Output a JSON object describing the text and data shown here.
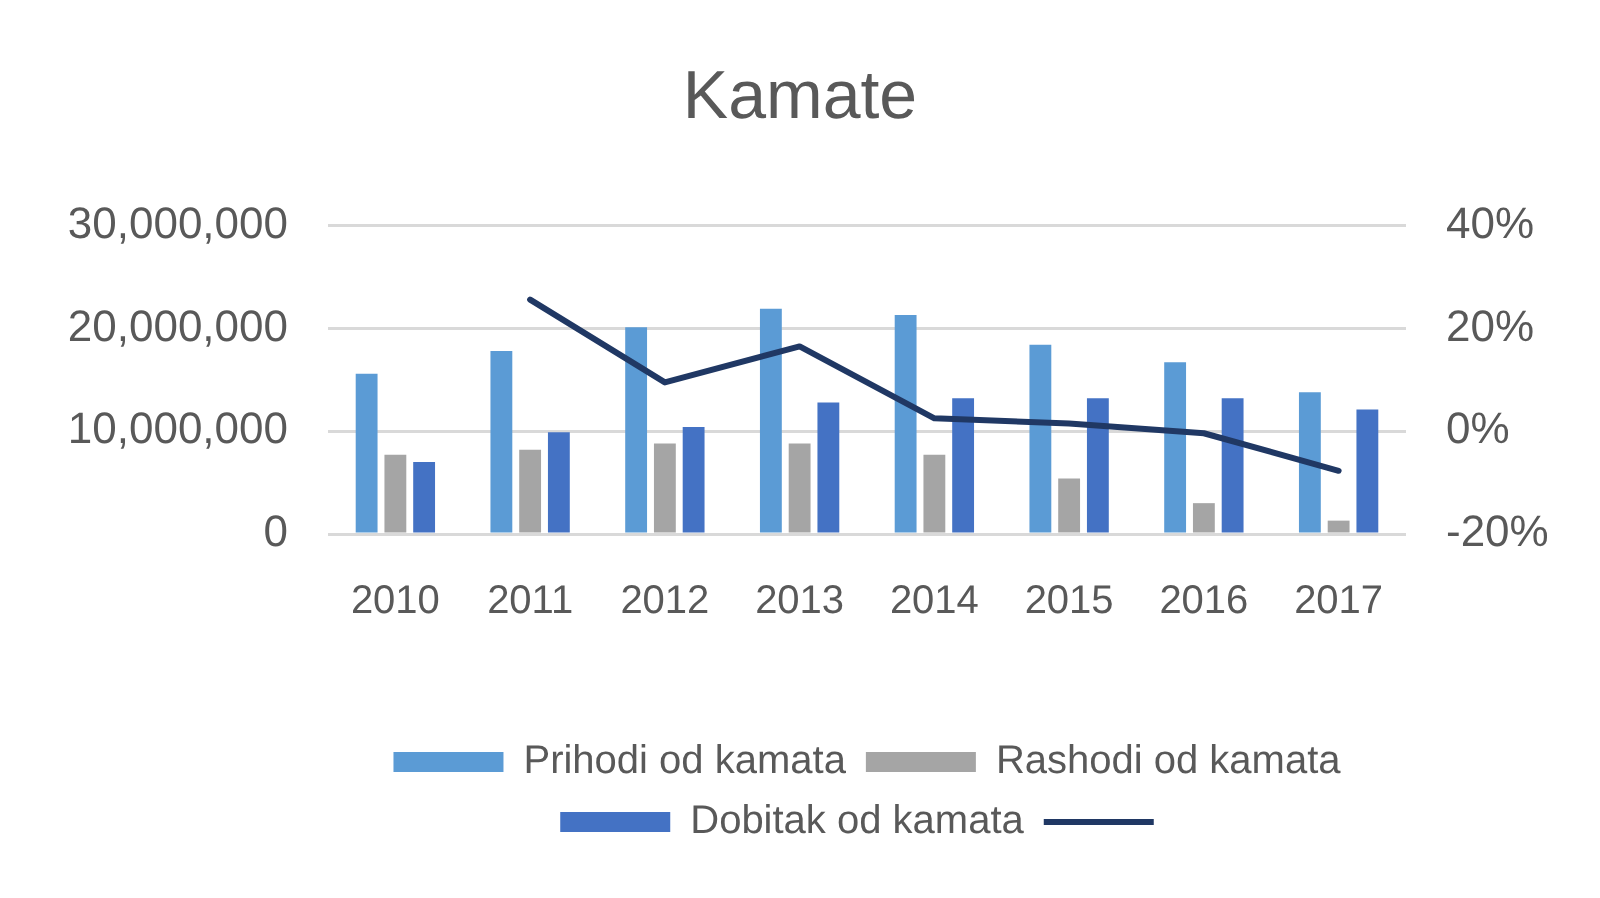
{
  "chart_data": {
    "type": "bar",
    "title": "Kamate",
    "categories": [
      "2010",
      "2011",
      "2012",
      "2013",
      "2014",
      "2015",
      "2016",
      "2017"
    ],
    "series": [
      {
        "name": "Prihodi od kamata",
        "color": "#5b9bd5",
        "values": [
          15600000,
          17800000,
          20100000,
          21900000,
          21300000,
          18400000,
          16700000,
          13800000
        ]
      },
      {
        "name": "Rashodi od kamata",
        "color": "#a5a5a5",
        "values": [
          7700000,
          8200000,
          8800000,
          8800000,
          7700000,
          5400000,
          3000000,
          1300000
        ]
      },
      {
        "name": "Dobitak od kamata",
        "color": "#4472c4",
        "values": [
          7000000,
          9900000,
          10400000,
          12800000,
          13200000,
          13200000,
          13200000,
          12100000
        ]
      },
      {
        "type": "line",
        "axis": "y2",
        "color": "#203864",
        "values": [
          null,
          25.6,
          9.5,
          16.5,
          2.5,
          1.5,
          -0.4,
          -7.7
        ]
      }
    ],
    "ylim": [
      0,
      30000000
    ],
    "yticks": [
      {
        "value": 0,
        "label": "0"
      },
      {
        "value": 10000000,
        "label": "10,000,000"
      },
      {
        "value": 20000000,
        "label": "20,000,000"
      },
      {
        "value": 30000000,
        "label": "30,000,000"
      }
    ],
    "y2lim": [
      -20,
      40
    ],
    "y2ticks": [
      {
        "value": -20,
        "label": "-20%"
      },
      {
        "value": 0,
        "label": "0%"
      },
      {
        "value": 20,
        "label": "20%"
      },
      {
        "value": 40,
        "label": "40%"
      }
    ],
    "grid": "y",
    "legend": "bottom",
    "marker": "none"
  }
}
